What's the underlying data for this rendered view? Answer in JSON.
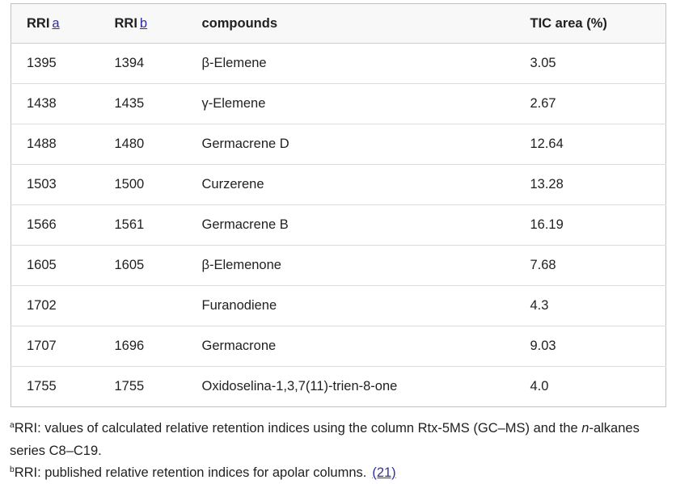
{
  "table": {
    "headers": [
      {
        "label": "RRI",
        "sup_link": "a"
      },
      {
        "label": "RRI",
        "sup_link": "b"
      },
      {
        "label": "compounds"
      },
      {
        "label": "TIC area (%)"
      }
    ],
    "rows": [
      [
        "1395",
        "1394",
        "β-Elemene",
        "3.05"
      ],
      [
        "1438",
        "1435",
        "γ-Elemene",
        "2.67"
      ],
      [
        "1488",
        "1480",
        "Germacrene D",
        "12.64"
      ],
      [
        "1503",
        "1500",
        "Curzerene",
        "13.28"
      ],
      [
        "1566",
        "1561",
        "Germacrene B",
        "16.19"
      ],
      [
        "1605",
        "1605",
        "β-Elemenone",
        "7.68"
      ],
      [
        "1702",
        "",
        "Furanodiene",
        "4.3"
      ],
      [
        "1707",
        "1696",
        "Germacrone",
        "9.03"
      ],
      [
        "1755",
        "1755",
        "Oxidoselina-1,3,7(11)-trien-8-one",
        "4.0"
      ]
    ]
  },
  "footnotes": {
    "a": {
      "marker": "a",
      "text_before_italic": "RRI: values of calculated relative retention indices using the column Rtx-5MS (GC–MS) and the ",
      "italic": "n",
      "text_after_italic": "-alkanes series C8–C19."
    },
    "b": {
      "marker": "b",
      "text": "RRI: published relative retention indices for apolar columns.",
      "link_label": "(21)"
    }
  },
  "colors": {
    "link": "#2f2fa2",
    "text": "#212121",
    "header_background": "#f8f8f8",
    "outer_border": "#c2c2c2",
    "row_border": "#dcdcdc"
  }
}
